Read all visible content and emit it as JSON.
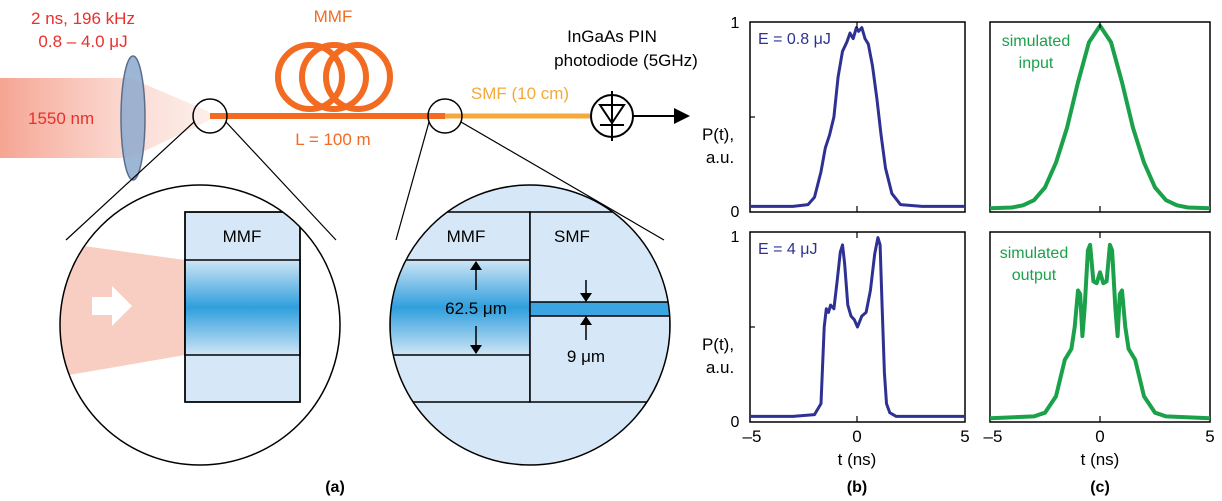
{
  "colors": {
    "laser_red": "#e8312c",
    "mmf_orange": "#f26b21",
    "smf_orange": "#f5a93a",
    "trace_blue": "#2e3192",
    "trace_green": "#1aa14a",
    "cladding": "#d6e8f7",
    "core": "#3aa5e0",
    "beam": "#f6b9a8"
  },
  "setup": {
    "source_line1": "2 ns, 196 kHz",
    "source_line2": "0.8 – 4.0 μJ",
    "wavelength": "1550 nm",
    "mmf_label": "MMF",
    "mmf_length": "L = 100 m",
    "smf_label": "SMF (10 cm)",
    "detector_line1": "InGaAs PIN",
    "detector_line2": "photodiode (5GHz)"
  },
  "insets": {
    "left_mmf": "MMF",
    "right_mmf": "MMF",
    "right_smf": "SMF",
    "core_mmf": "62.5 μm",
    "core_smf": "9 μm"
  },
  "panel_labels": {
    "a": "(a)",
    "b": "(b)",
    "c": "(c)"
  },
  "plots": {
    "y_label_line1": "P(t),",
    "y_label_line2": "a.u.",
    "x_label": "t (ns)",
    "y_tick_top": "1",
    "y_tick_bottom": "0",
    "x_tick_left": "–5",
    "x_tick_mid": "0",
    "x_tick_right": "5",
    "x_tick_left2": "–5",
    "x_tick_mid2": "0",
    "x_tick_right2": "5"
  },
  "chart_data": [
    {
      "type": "line",
      "panel": "b-top",
      "annotation": "E = 0.8 μJ",
      "xlim": [
        -5,
        5
      ],
      "ylim": [
        0,
        1
      ],
      "series": [
        {
          "x": [
            -5,
            -4,
            -3,
            -2.3,
            -2,
            -1.7,
            -1.5,
            -1.3,
            -1.1,
            -0.9,
            -0.7,
            -0.5,
            -0.35,
            -0.2,
            -0.05,
            0.05,
            0.2,
            0.35,
            0.5,
            0.7,
            0.9,
            1.1,
            1.3,
            1.6,
            2,
            3,
            4,
            5
          ],
          "y": [
            0.01,
            0.01,
            0.01,
            0.02,
            0.06,
            0.2,
            0.33,
            0.4,
            0.5,
            0.72,
            0.86,
            0.91,
            0.96,
            0.93,
            0.99,
            0.97,
            0.99,
            0.93,
            0.9,
            0.78,
            0.6,
            0.4,
            0.22,
            0.08,
            0.02,
            0.01,
            0.01,
            0.01
          ]
        }
      ]
    },
    {
      "type": "line",
      "panel": "c-top",
      "annotation_line1": "simulated",
      "annotation_line2": "input",
      "xlim": [
        -5,
        5
      ],
      "ylim": [
        0,
        1
      ],
      "series": [
        {
          "x": [
            -5,
            -4,
            -3.5,
            -3,
            -2.5,
            -2,
            -1.5,
            -1,
            -0.5,
            0,
            0.5,
            1,
            1.5,
            2,
            2.5,
            3,
            3.5,
            4,
            5
          ],
          "y": [
            0.0,
            0.004,
            0.016,
            0.044,
            0.114,
            0.25,
            0.44,
            0.69,
            0.91,
            1.0,
            0.91,
            0.69,
            0.44,
            0.25,
            0.114,
            0.044,
            0.016,
            0.004,
            0.0
          ]
        }
      ]
    },
    {
      "type": "line",
      "panel": "b-bottom",
      "annotation": "E = 4 μJ",
      "xlim": [
        -5,
        5
      ],
      "ylim": [
        0,
        1
      ],
      "series": [
        {
          "x": [
            -5,
            -3,
            -2,
            -1.7,
            -1.55,
            -1.45,
            -1.35,
            -1.25,
            -1.1,
            -0.95,
            -0.8,
            -0.7,
            -0.6,
            -0.45,
            -0.3,
            -0.15,
            0,
            0.2,
            0.4,
            0.6,
            0.8,
            0.95,
            1.05,
            1.15,
            1.25,
            1.35,
            1.5,
            1.8,
            3,
            5
          ],
          "y": [
            0.01,
            0.01,
            0.02,
            0.08,
            0.5,
            0.6,
            0.58,
            0.62,
            0.6,
            0.75,
            0.91,
            0.95,
            0.85,
            0.62,
            0.56,
            0.54,
            0.5,
            0.56,
            0.58,
            0.7,
            0.9,
            0.99,
            0.95,
            0.6,
            0.25,
            0.08,
            0.03,
            0.01,
            0.01,
            0.01
          ]
        }
      ]
    },
    {
      "type": "line",
      "panel": "c-bottom",
      "annotation_line1": "simulated",
      "annotation_line2": "output",
      "xlim": [
        -5,
        5
      ],
      "ylim": [
        0,
        1
      ],
      "series": [
        {
          "x": [
            -5,
            -3,
            -2.5,
            -2,
            -1.6,
            -1.3,
            -1.15,
            -1.0,
            -0.9,
            -0.8,
            -0.7,
            -0.55,
            -0.45,
            -0.3,
            -0.15,
            0,
            0.15,
            0.3,
            0.45,
            0.55,
            0.7,
            0.8,
            0.9,
            1.0,
            1.15,
            1.3,
            1.6,
            2,
            2.5,
            3,
            5
          ],
          "y": [
            0.0,
            0.01,
            0.03,
            0.12,
            0.32,
            0.38,
            0.5,
            0.7,
            0.68,
            0.45,
            0.6,
            0.92,
            0.95,
            0.75,
            0.74,
            0.8,
            0.74,
            0.75,
            0.95,
            0.92,
            0.6,
            0.45,
            0.68,
            0.7,
            0.5,
            0.38,
            0.32,
            0.12,
            0.03,
            0.01,
            0.0
          ]
        }
      ]
    }
  ]
}
